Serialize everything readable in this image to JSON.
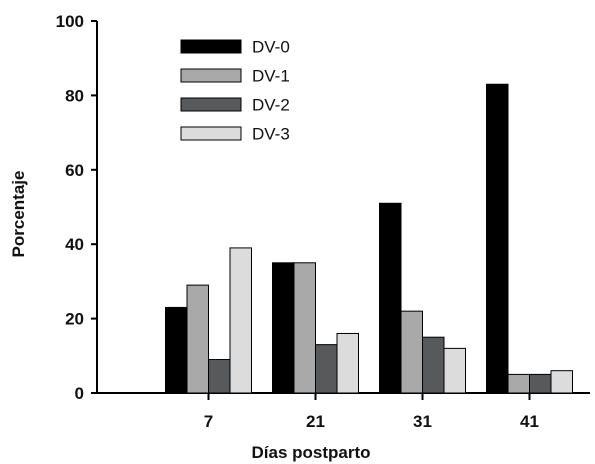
{
  "chart_data": {
    "type": "bar",
    "categories": [
      "7",
      "21",
      "31",
      "41"
    ],
    "series": [
      {
        "name": "DV-0",
        "color": "#000000",
        "values": [
          23,
          35,
          51,
          83
        ]
      },
      {
        "name": "DV-1",
        "color": "#a9a9a9",
        "values": [
          29,
          35,
          22,
          5
        ]
      },
      {
        "name": "DV-2",
        "color": "#58595b",
        "values": [
          9,
          13,
          15,
          5
        ]
      },
      {
        "name": "DV-3",
        "color": "#dcdcdc",
        "values": [
          39,
          16,
          12,
          6
        ]
      }
    ],
    "xlabel": "Días postparto",
    "ylabel": "Porcentaje",
    "ylim": [
      0,
      100
    ],
    "yticks": [
      0,
      20,
      40,
      60,
      80,
      100
    ],
    "grid": false,
    "legend_position": "top-left"
  }
}
